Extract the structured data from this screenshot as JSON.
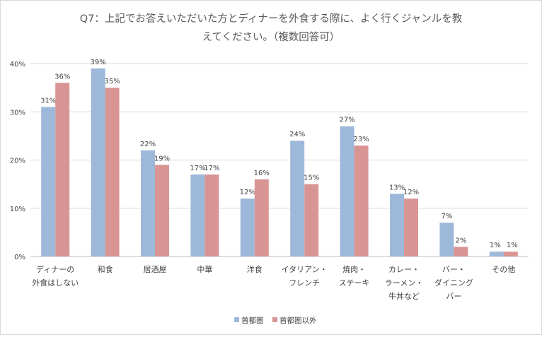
{
  "chart_data": {
    "type": "bar",
    "title_lines": [
      "Q7：上記でお答えいただいた方とディナーを外食する際に、よく行くジャンルを教",
      "えてください。（複数回答可）"
    ],
    "categories": [
      [
        "ディナーの",
        "外食はしない"
      ],
      [
        "和食"
      ],
      [
        "居酒屋"
      ],
      [
        "中華"
      ],
      [
        "洋食"
      ],
      [
        "イタリアン・",
        "フレンチ"
      ],
      [
        "焼肉・",
        "ステーキ"
      ],
      [
        "カレー・",
        "ラーメン・",
        "牛丼など"
      ],
      [
        "バー・",
        "ダイニング",
        "バー"
      ],
      [
        "その他"
      ]
    ],
    "series": [
      {
        "name": "首都圏",
        "color": "#9db8d9",
        "values": [
          31,
          39,
          22,
          17,
          12,
          24,
          27,
          13,
          7,
          1
        ],
        "labels": [
          "31%",
          "39%",
          "22%",
          "17%",
          "12%",
          "24%",
          "27%",
          "13%",
          "7%",
          "1%"
        ]
      },
      {
        "name": "首都圏以外",
        "color": "#d99594",
        "values": [
          36,
          35,
          19,
          17,
          16,
          15,
          23,
          12,
          2,
          1
        ],
        "labels": [
          "36%",
          "35%",
          "19%",
          "17%",
          "16%",
          "15%",
          "23%",
          "12%",
          "2%",
          "1%"
        ]
      }
    ],
    "y_ticks": [
      0,
      10,
      20,
      30,
      40
    ],
    "y_tick_labels": [
      "0%",
      "10%",
      "20%",
      "30%",
      "40%"
    ],
    "ylim": [
      0,
      40
    ],
    "grid": true,
    "legend_position": "bottom-center"
  }
}
